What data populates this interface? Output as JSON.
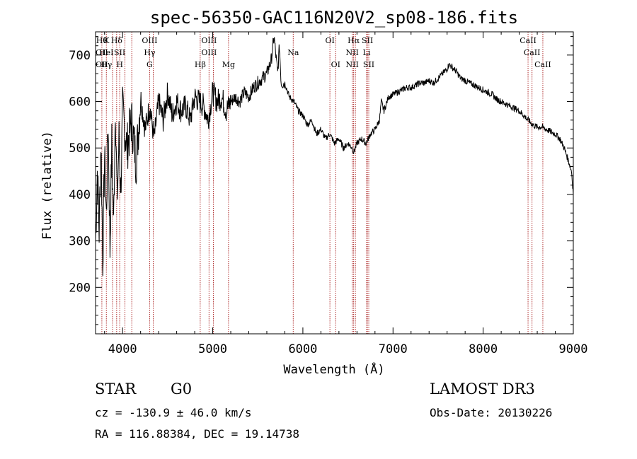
{
  "chart_data": {
    "type": "line",
    "title": "spec-56350-GAC116N20V2_sp08-186.fits",
    "xlabel": "Wavelength (Å)",
    "ylabel": "Flux (relative)",
    "xlim": [
      3700,
      9000
    ],
    "ylim": [
      100,
      750
    ],
    "x_ticks": [
      4000,
      5000,
      6000,
      7000,
      8000,
      9000
    ],
    "y_ticks": [
      200,
      300,
      400,
      500,
      600,
      700
    ],
    "grid": false,
    "series": [
      {
        "name": "flux",
        "x": [
          3700,
          3720,
          3740,
          3760,
          3780,
          3800,
          3820,
          3840,
          3860,
          3880,
          3900,
          3920,
          3940,
          3960,
          3980,
          4000,
          4050,
          4100,
          4150,
          4200,
          4250,
          4300,
          4350,
          4400,
          4450,
          4500,
          4550,
          4600,
          4650,
          4700,
          4750,
          4800,
          4850,
          4900,
          4950,
          5000,
          5050,
          5100,
          5150,
          5200,
          5250,
          5300,
          5350,
          5400,
          5450,
          5500,
          5550,
          5600,
          5650,
          5680,
          5700,
          5720,
          5740,
          5760,
          5800,
          5850,
          5900,
          5950,
          6000,
          6050,
          6100,
          6150,
          6200,
          6250,
          6300,
          6350,
          6400,
          6450,
          6500,
          6550,
          6563,
          6600,
          6650,
          6700,
          6750,
          6800,
          6850,
          6870,
          6900,
          6950,
          7000,
          7050,
          7100,
          7150,
          7200,
          7250,
          7300,
          7350,
          7400,
          7450,
          7500,
          7550,
          7600,
          7620,
          7650,
          7700,
          7750,
          7800,
          7850,
          7900,
          7950,
          8000,
          8050,
          8100,
          8150,
          8200,
          8250,
          8300,
          8350,
          8400,
          8450,
          8500,
          8550,
          8600,
          8650,
          8700,
          8750,
          8800,
          8850,
          8900,
          8950,
          8980,
          9000
        ],
        "values": [
          300,
          450,
          320,
          520,
          260,
          480,
          350,
          560,
          280,
          510,
          330,
          600,
          380,
          520,
          410,
          580,
          500,
          560,
          470,
          610,
          540,
          590,
          520,
          600,
          560,
          620,
          570,
          600,
          580,
          590,
          560,
          610,
          600,
          590,
          560,
          620,
          600,
          610,
          580,
          600,
          610,
          600,
          620,
          610,
          630,
          640,
          650,
          660,
          690,
          740,
          700,
          660,
          720,
          640,
          640,
          610,
          600,
          580,
          570,
          550,
          560,
          530,
          540,
          520,
          530,
          510,
          520,
          500,
          510,
          500,
          490,
          510,
          520,
          510,
          530,
          540,
          560,
          600,
          580,
          610,
          615,
          620,
          625,
          630,
          630,
          635,
          640,
          640,
          645,
          640,
          650,
          660,
          670,
          680,
          675,
          665,
          650,
          645,
          640,
          635,
          630,
          625,
          620,
          615,
          605,
          600,
          595,
          590,
          585,
          580,
          570,
          560,
          550,
          545,
          545,
          540,
          535,
          530,
          520,
          500,
          470,
          450,
          400
        ]
      }
    ],
    "line_markers": [
      {
        "x": 3770,
        "rows": [
          {
            "label": "Hθ",
            "row": 1
          },
          {
            "label": "OII",
            "row": 2
          },
          {
            "label": "OII",
            "row": 3
          }
        ]
      },
      {
        "x": 3820,
        "rows": [
          {
            "label": "K",
            "row": 1
          },
          {
            "label": "HeI",
            "row": 2
          },
          {
            "label": "Hγ",
            "row": 3
          }
        ]
      },
      {
        "x": 3889,
        "rows": []
      },
      {
        "x": 3934,
        "rows": [
          {
            "label": "Hδ",
            "row": 1
          }
        ]
      },
      {
        "x": 3968,
        "rows": [
          {
            "label": "SII",
            "row": 2
          },
          {
            "label": "H",
            "row": 3
          }
        ]
      },
      {
        "x": 4026,
        "rows": []
      },
      {
        "x": 4102,
        "rows": []
      },
      {
        "x": 4300,
        "rows": [
          {
            "label": "OIII",
            "row": 1
          },
          {
            "label": "Hγ",
            "row": 2
          },
          {
            "label": "G",
            "row": 3
          }
        ]
      },
      {
        "x": 4340,
        "rows": []
      },
      {
        "x": 4861,
        "rows": [
          {
            "label": "Hβ",
            "row": 3
          }
        ]
      },
      {
        "x": 4959,
        "rows": [
          {
            "label": "OIII",
            "row": 1
          },
          {
            "label": "OIII",
            "row": 2
          }
        ]
      },
      {
        "x": 5007,
        "rows": []
      },
      {
        "x": 5175,
        "rows": [
          {
            "label": "Mg",
            "row": 3
          }
        ]
      },
      {
        "x": 5893,
        "rows": [
          {
            "label": "Na",
            "row": 2
          }
        ]
      },
      {
        "x": 6300,
        "rows": [
          {
            "label": "OI",
            "row": 1
          }
        ]
      },
      {
        "x": 6364,
        "rows": [
          {
            "label": "OI",
            "row": 3
          }
        ]
      },
      {
        "x": 6548,
        "rows": [
          {
            "label": "NII",
            "row": 2
          },
          {
            "label": "NII",
            "row": 3
          }
        ]
      },
      {
        "x": 6563,
        "rows": [
          {
            "label": "Hα",
            "row": 1
          }
        ]
      },
      {
        "x": 6583,
        "rows": []
      },
      {
        "x": 6707,
        "rows": [
          {
            "label": "Li",
            "row": 2
          }
        ]
      },
      {
        "x": 6716,
        "rows": [
          {
            "label": "SII",
            "row": 1
          }
        ]
      },
      {
        "x": 6731,
        "rows": [
          {
            "label": "SII",
            "row": 3
          }
        ]
      },
      {
        "x": 8498,
        "rows": [
          {
            "label": "CaII",
            "row": 1
          }
        ]
      },
      {
        "x": 8542,
        "rows": [
          {
            "label": "CaII",
            "row": 2
          }
        ]
      },
      {
        "x": 8662,
        "rows": [
          {
            "label": "CaII",
            "row": 3
          }
        ]
      }
    ]
  },
  "info": {
    "class_label": "STAR",
    "subclass": "G0",
    "survey": "LAMOST DR3",
    "cz": "cz = -130.9 ± 46.0 km/s",
    "obs_date": "Obs-Date: 20130226",
    "coords": "RA = 116.88384, DEC =  19.14738"
  },
  "colors": {
    "line": "#000000",
    "marker": "#b03030",
    "axis": "#000000"
  }
}
